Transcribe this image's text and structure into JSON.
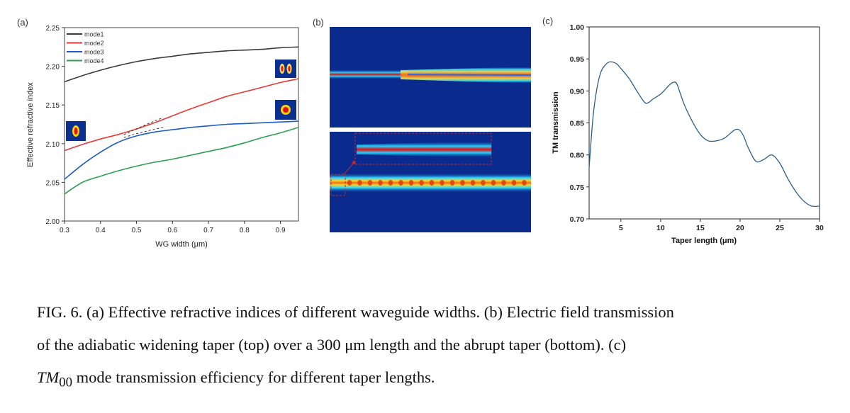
{
  "panels": {
    "a": {
      "label": "(a)"
    },
    "b": {
      "label": "(b)"
    },
    "c": {
      "label": "(c)"
    }
  },
  "chart_data": [
    {
      "type": "line",
      "panel": "(a)",
      "xlabel": "WG width (μm)",
      "ylabel": "Effective refractive index",
      "xlim": [
        0.3,
        0.95
      ],
      "ylim": [
        2.0,
        2.25
      ],
      "xticks": [
        0.3,
        0.4,
        0.5,
        0.6,
        0.7,
        0.8,
        0.9
      ],
      "yticks": [
        2.0,
        2.05,
        2.1,
        2.15,
        2.2,
        2.25
      ],
      "grid": false,
      "legend": "top-left",
      "series": [
        {
          "name": "mode1",
          "color": "#3a3a3a",
          "x": [
            0.3,
            0.35,
            0.4,
            0.45,
            0.5,
            0.55,
            0.6,
            0.65,
            0.7,
            0.75,
            0.8,
            0.85,
            0.9,
            0.95
          ],
          "y": [
            2.18,
            2.188,
            2.195,
            2.201,
            2.206,
            2.21,
            2.213,
            2.216,
            2.218,
            2.22,
            2.221,
            2.222,
            2.224,
            2.225
          ]
        },
        {
          "name": "mode2",
          "color": "#e53935",
          "x": [
            0.3,
            0.35,
            0.4,
            0.45,
            0.5,
            0.55,
            0.6,
            0.65,
            0.7,
            0.75,
            0.8,
            0.85,
            0.9,
            0.95
          ],
          "y": [
            2.091,
            2.099,
            2.106,
            2.112,
            2.119,
            2.127,
            2.136,
            2.145,
            2.153,
            2.161,
            2.167,
            2.173,
            2.179,
            2.184
          ]
        },
        {
          "name": "mode3",
          "color": "#1e5bc6",
          "x": [
            0.3,
            0.35,
            0.4,
            0.45,
            0.5,
            0.55,
            0.6,
            0.65,
            0.7,
            0.75,
            0.8,
            0.85,
            0.9,
            0.95
          ],
          "y": [
            2.054,
            2.073,
            2.089,
            2.102,
            2.11,
            2.115,
            2.118,
            2.121,
            2.123,
            2.125,
            2.126,
            2.127,
            2.128,
            2.129
          ]
        },
        {
          "name": "mode4",
          "color": "#2e9e4f",
          "x": [
            0.3,
            0.35,
            0.4,
            0.45,
            0.5,
            0.55,
            0.6,
            0.65,
            0.7,
            0.75,
            0.8,
            0.85,
            0.9,
            0.95
          ],
          "y": [
            2.035,
            2.05,
            2.058,
            2.065,
            2.071,
            2.076,
            2.08,
            2.085,
            2.09,
            2.095,
            2.101,
            2.108,
            2.114,
            2.121
          ]
        }
      ],
      "annotations": [
        "mode profile insets",
        "dashed anti-crossing marker near 0.5"
      ]
    },
    {
      "type": "line",
      "panel": "(c)",
      "xlabel": "Taper length (μm)",
      "ylabel": "TM transmission",
      "xlim": [
        1,
        30
      ],
      "ylim": [
        0.7,
        1.0
      ],
      "xticks": [
        5,
        10,
        15,
        20,
        25,
        30
      ],
      "yticks": [
        0.7,
        0.75,
        0.8,
        0.85,
        0.9,
        0.95,
        1.0
      ],
      "grid": false,
      "legend": "none",
      "series": [
        {
          "color": "#2b5f8a",
          "x": [
            1,
            1.5,
            2,
            2.5,
            3,
            3.5,
            4,
            4.5,
            5,
            6,
            7,
            8,
            8.5,
            9,
            10,
            11,
            11.5,
            12,
            12.5,
            13,
            14,
            15,
            16,
            17,
            18,
            19,
            19.5,
            20,
            20.5,
            21,
            22,
            23,
            24,
            25,
            26,
            27,
            28,
            29,
            30
          ],
          "y": [
            0.78,
            0.86,
            0.905,
            0.93,
            0.94,
            0.945,
            0.945,
            0.942,
            0.935,
            0.92,
            0.9,
            0.882,
            0.882,
            0.887,
            0.895,
            0.908,
            0.913,
            0.912,
            0.895,
            0.878,
            0.852,
            0.832,
            0.822,
            0.822,
            0.826,
            0.836,
            0.84,
            0.838,
            0.828,
            0.812,
            0.79,
            0.793,
            0.8,
            0.787,
            0.763,
            0.743,
            0.728,
            0.72,
            0.72
          ]
        }
      ]
    }
  ],
  "caption": {
    "line1": "FIG. 6.  (a) Effective refractive indices of different waveguide widths.  (b) Electric field transmission",
    "line2": "of the adiabatic widening taper (top) over a 300 μm length and the abrupt taper (bottom).  (c)",
    "line3_math": "TM",
    "line3_sub": "00",
    "line3_rest": " mode transmission efficiency for different taper lengths."
  }
}
